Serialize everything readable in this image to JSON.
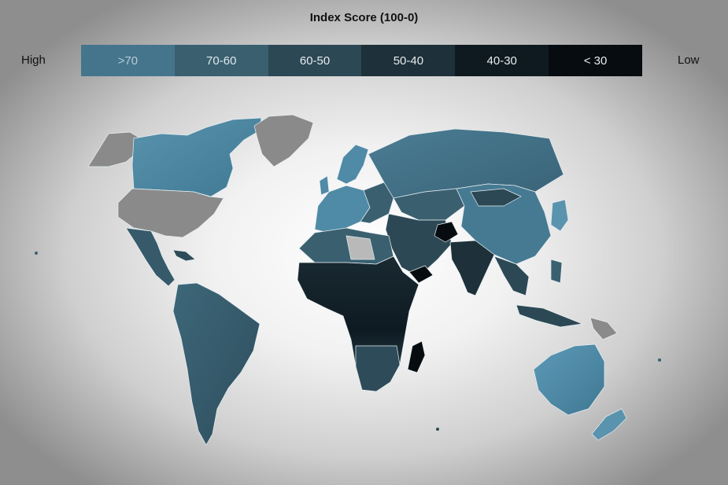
{
  "legend": {
    "title": "Index Score (100-0)",
    "high_label": "High",
    "low_label": "Low",
    "bins": [
      {
        "label": ">70",
        "color": "#45758c",
        "text_color": "#b7cbd5"
      },
      {
        "label": "70-60",
        "color": "#3a6070",
        "text_color": "#dfe8ec"
      },
      {
        "label": "60-50",
        "color": "#2c4854",
        "text_color": "#e6edf0"
      },
      {
        "label": "50-40",
        "color": "#1e3039",
        "text_color": "#e6edf0"
      },
      {
        "label": "40-30",
        "color": "#0f1a20",
        "text_color": "#e6edf0"
      },
      {
        "label": "< 30",
        "color": "#070c10",
        "text_color": "#e6edf0"
      }
    ]
  },
  "map": {
    "no_data_color": "#8a8a8a",
    "light_no_data_color": "#b9b9b9",
    "regions": [
      {
        "name": "canada",
        "bin": ">70"
      },
      {
        "name": "alaska",
        "bin": "no-data"
      },
      {
        "name": "greenland",
        "bin": "no-data"
      },
      {
        "name": "united-states",
        "bin": "no-data"
      },
      {
        "name": "mexico-central-america",
        "bin": "60-50"
      },
      {
        "name": "south-america",
        "bin": "70-60"
      },
      {
        "name": "western-europe",
        "bin": ">70"
      },
      {
        "name": "scandinavia",
        "bin": ">70"
      },
      {
        "name": "russia",
        "bin": "70-60"
      },
      {
        "name": "china",
        "bin": "70-60"
      },
      {
        "name": "north-africa",
        "bin": "60-50"
      },
      {
        "name": "libya",
        "bin": "no-data"
      },
      {
        "name": "west-central-africa",
        "bin": "40-30"
      },
      {
        "name": "southern-africa",
        "bin": "60-50"
      },
      {
        "name": "madagascar",
        "bin": "< 30"
      },
      {
        "name": "middle-east",
        "bin": "60-50"
      },
      {
        "name": "afghanistan",
        "bin": "< 30"
      },
      {
        "name": "yemen",
        "bin": "< 30"
      },
      {
        "name": "india",
        "bin": "50-40"
      },
      {
        "name": "southeast-asia",
        "bin": "60-50"
      },
      {
        "name": "indonesia",
        "bin": "60-50"
      },
      {
        "name": "papua-new-guinea",
        "bin": "no-data"
      },
      {
        "name": "australia",
        "bin": ">70"
      },
      {
        "name": "new-zealand",
        "bin": ">70"
      },
      {
        "name": "japan",
        "bin": ">70"
      }
    ]
  }
}
